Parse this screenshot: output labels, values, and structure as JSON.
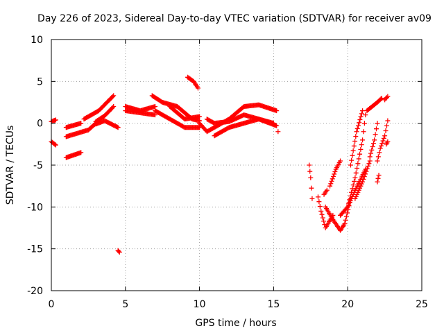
{
  "colors": {
    "series": "#ff0000",
    "grid": "#a0a0a0",
    "frame": "#000000"
  },
  "chart_data": {
    "type": "scatter",
    "title": "Day 226 of 2023, Sidereal Day-to-day VTEC variation (SDTVAR) for receiver av09",
    "xlabel": "GPS time / hours",
    "ylabel": "SDTVAR / TECUs",
    "xlim": [
      0,
      25
    ],
    "ylim": [
      -20,
      10
    ],
    "xticks": [
      0,
      5,
      10,
      15,
      20,
      25
    ],
    "yticks": [
      -20,
      -15,
      -10,
      -5,
      0,
      5,
      10
    ],
    "xtick_labels": [
      "0",
      "5",
      "10",
      "15",
      "20",
      "25"
    ],
    "ytick_labels": [
      "-20",
      "-15",
      "-10",
      "-5",
      "0",
      "5",
      "10"
    ],
    "grid": true,
    "marker": "+",
    "series": [
      {
        "name": "SDTVAR",
        "tracks": [
          [
            [
              0.0,
              0.2
            ],
            [
              0.3,
              0.4
            ]
          ],
          [
            [
              0.0,
              -2.2
            ],
            [
              0.3,
              -2.6
            ]
          ],
          [
            [
              1.0,
              -0.5
            ],
            [
              2.0,
              0.0
            ]
          ],
          [
            [
              1.0,
              -1.6
            ],
            [
              2.5,
              -0.8
            ],
            [
              3.2,
              0.3
            ]
          ],
          [
            [
              1.0,
              -4.1
            ],
            [
              2.0,
              -3.5
            ]
          ],
          [
            [
              2.2,
              0.5
            ],
            [
              3.2,
              1.5
            ],
            [
              4.2,
              3.3
            ]
          ],
          [
            [
              3.0,
              0.2
            ],
            [
              3.6,
              0.9
            ],
            [
              4.2,
              2.0
            ]
          ],
          [
            [
              3.0,
              -0.1
            ],
            [
              3.6,
              0.3
            ],
            [
              4.5,
              -0.5
            ]
          ],
          [
            [
              4.5,
              -15.2
            ],
            [
              4.6,
              -15.4
            ]
          ],
          [
            [
              5.0,
              1.5
            ],
            [
              7.0,
              1.0
            ]
          ],
          [
            [
              5.0,
              2.0
            ],
            [
              6.0,
              1.5
            ],
            [
              7.0,
              2.0
            ]
          ],
          [
            [
              6.8,
              3.3
            ],
            [
              7.5,
              2.5
            ],
            [
              8.5,
              2.0
            ],
            [
              9.5,
              0.5
            ],
            [
              10.0,
              0.3
            ]
          ],
          [
            [
              7.0,
              1.5
            ],
            [
              8.5,
              0.0
            ],
            [
              9.0,
              -0.5
            ],
            [
              10.0,
              -0.5
            ]
          ],
          [
            [
              8.0,
              2.0
            ],
            [
              9.0,
              0.5
            ],
            [
              10.0,
              0.8
            ]
          ],
          [
            [
              9.2,
              5.5
            ],
            [
              9.6,
              5.0
            ],
            [
              9.9,
              4.2
            ]
          ],
          [
            [
              10.0,
              0.0
            ],
            [
              10.5,
              -1.0
            ],
            [
              11.0,
              -0.5
            ],
            [
              12.0,
              0.5
            ],
            [
              13.0,
              2.0
            ],
            [
              14.0,
              2.2
            ],
            [
              15.2,
              1.5
            ]
          ],
          [
            [
              10.5,
              0.5
            ],
            [
              11.0,
              0.0
            ],
            [
              12.0,
              0.2
            ],
            [
              13.0,
              1.0
            ],
            [
              14.0,
              0.5
            ],
            [
              15.0,
              0.0
            ]
          ],
          [
            [
              11.0,
              -1.5
            ],
            [
              12.0,
              -0.5
            ],
            [
              13.0,
              0.0
            ],
            [
              14.0,
              0.5
            ],
            [
              15.2,
              -0.3
            ]
          ],
          [
            [
              15.3,
              -1.0
            ]
          ],
          [
            [
              17.4,
              -5.0
            ],
            [
              17.5,
              -6.5
            ],
            [
              17.6,
              -9.0
            ]
          ],
          [
            [
              18.0,
              -8.8
            ],
            [
              18.2,
              -10.5
            ],
            [
              18.5,
              -12.5
            ],
            [
              19.0,
              -11.0
            ]
          ],
          [
            [
              18.4,
              -8.5
            ],
            [
              18.6,
              -8.0
            ]
          ],
          [
            [
              18.5,
              -10.0
            ],
            [
              19.0,
              -11.5
            ],
            [
              19.5,
              -12.8
            ],
            [
              19.8,
              -12.0
            ],
            [
              20.2,
              -9.0
            ]
          ],
          [
            [
              18.8,
              -7.5
            ],
            [
              19.2,
              -5.5
            ],
            [
              19.5,
              -4.5
            ]
          ],
          [
            [
              19.5,
              -11.0
            ],
            [
              20.0,
              -10.0
            ],
            [
              20.5,
              -8.0
            ],
            [
              21.2,
              -5.5
            ]
          ],
          [
            [
              20.0,
              -10.0
            ],
            [
              20.5,
              -6.5
            ],
            [
              21.0,
              -2.0
            ],
            [
              21.2,
              1.0
            ]
          ],
          [
            [
              20.2,
              -5.0
            ],
            [
              20.6,
              -1.0
            ],
            [
              21.0,
              1.5
            ]
          ],
          [
            [
              20.5,
              -9.0
            ],
            [
              21.0,
              -7.0
            ],
            [
              21.5,
              -4.5
            ]
          ],
          [
            [
              21.3,
              1.5
            ],
            [
              22.0,
              2.5
            ],
            [
              22.3,
              3.0
            ]
          ],
          [
            [
              21.5,
              -4.0
            ],
            [
              21.8,
              -2.0
            ],
            [
              22.0,
              0.0
            ]
          ],
          [
            [
              22.0,
              -7.0
            ],
            [
              22.1,
              -6.2
            ]
          ],
          [
            [
              22.0,
              -4.5
            ],
            [
              22.2,
              -3.0
            ],
            [
              22.5,
              -1.5
            ],
            [
              22.7,
              0.3
            ]
          ],
          [
            [
              22.5,
              2.8
            ],
            [
              22.7,
              3.2
            ]
          ],
          [
            [
              22.6,
              -2.5
            ],
            [
              22.7,
              -2.2
            ]
          ]
        ]
      }
    ]
  }
}
